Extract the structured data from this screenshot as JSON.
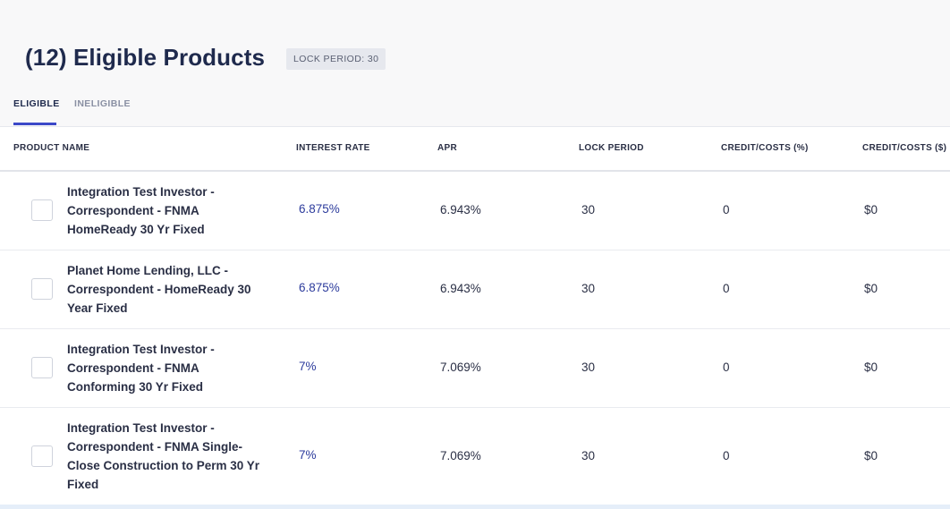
{
  "header": {
    "title": "(12) Eligible Products",
    "lock_badge": "LOCK PERIOD: 30"
  },
  "tabs": [
    {
      "label": "ELIGIBLE",
      "active": true
    },
    {
      "label": "INELIGIBLE",
      "active": false
    }
  ],
  "columns": [
    "PRODUCT NAME",
    "INTEREST RATE",
    "APR",
    "LOCK PERIOD",
    "CREDIT/COSTS (%)",
    "CREDIT/COSTS ($)"
  ],
  "rows": [
    {
      "product_name": "Integration Test Investor - Correspondent - FNMA HomeReady 30 Yr Fixed",
      "interest_rate": "6.875%",
      "apr": "6.943%",
      "lock_period": "30",
      "credit_costs_pct": "0",
      "credit_costs_usd": "$0"
    },
    {
      "product_name": "Planet Home Lending, LLC - Correspondent - HomeReady 30 Year Fixed",
      "interest_rate": "6.875%",
      "apr": "6.943%",
      "lock_period": "30",
      "credit_costs_pct": "0",
      "credit_costs_usd": "$0"
    },
    {
      "product_name": "Integration Test Investor - Correspondent - FNMA Conforming 30 Yr Fixed",
      "interest_rate": "7%",
      "apr": "7.069%",
      "lock_period": "30",
      "credit_costs_pct": "0",
      "credit_costs_usd": "$0"
    },
    {
      "product_name": "Integration Test Investor - Correspondent - FNMA Single-Close Construction to Perm 30 Yr Fixed",
      "interest_rate": "7%",
      "apr": "7.069%",
      "lock_period": "30",
      "credit_costs_pct": "0",
      "credit_costs_usd": "$0"
    }
  ],
  "colors": {
    "accent": "#3b48c8",
    "rate_text": "#2c3b9c",
    "title": "#1f2a4d"
  }
}
